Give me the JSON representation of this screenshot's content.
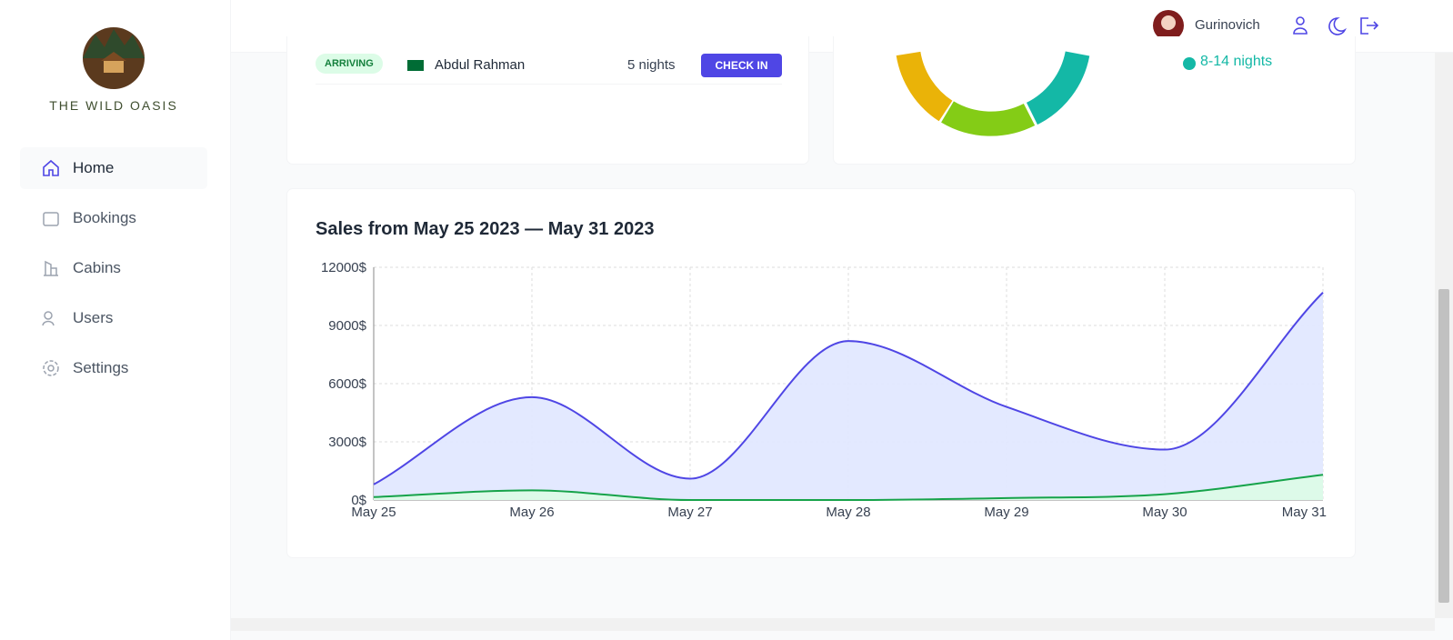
{
  "header": {
    "user_name": "Gurinovich"
  },
  "sidebar": {
    "brand": "THE WILD OASIS",
    "nav": [
      "Home",
      "Bookings",
      "Cabins",
      "Users",
      "Settings"
    ]
  },
  "today": {
    "status": "ARRIVING",
    "guest": "Abdul Rahman",
    "nights": "5 nights",
    "action": "CHECK IN"
  },
  "durations": {
    "legend": [
      "8-14 nights"
    ]
  },
  "chart_data": {
    "type": "area",
    "title": "Sales from May 25 2023 — May 31 2023",
    "categories": [
      "May 25",
      "May 26",
      "May 27",
      "May 28",
      "May 29",
      "May 30",
      "May 31"
    ],
    "series": [
      {
        "color": "#4f46e5",
        "fill": "#e0e7ff",
        "values": [
          800,
          5300,
          1100,
          8200,
          4800,
          2600,
          10700
        ]
      },
      {
        "color": "#16a34a",
        "fill": "#dcfce7",
        "values": [
          150,
          500,
          0,
          0,
          100,
          300,
          1300
        ]
      }
    ],
    "ylim": [
      0,
      12000
    ],
    "yticks": [
      {
        "value": 0,
        "label": "0$"
      },
      {
        "value": 3000,
        "label": "3000$"
      },
      {
        "value": 6000,
        "label": "6000$"
      },
      {
        "value": 9000,
        "label": "9000$"
      },
      {
        "value": 12000,
        "label": "12000$"
      }
    ],
    "grid": true
  }
}
